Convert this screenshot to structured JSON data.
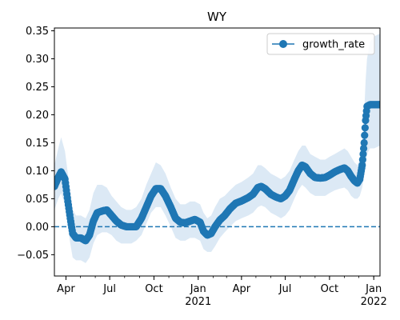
{
  "chart_data": {
    "type": "line",
    "title": "WY",
    "xlabel": "",
    "ylabel": "",
    "x_range": [
      "2020-03-08",
      "2022-01-14"
    ],
    "ylim": [
      -0.088,
      0.355
    ],
    "y_ticks": [
      -0.05,
      0.0,
      0.05,
      0.1,
      0.15,
      0.2,
      0.25,
      0.3,
      0.35
    ],
    "y_tick_labels": [
      "−0.05",
      "0.00",
      "0.05",
      "0.10",
      "0.15",
      "0.20",
      "0.25",
      "0.30",
      "0.35"
    ],
    "x_ticks": [
      {
        "date": "2020-04-01",
        "label": "Apr",
        "sublabel": ""
      },
      {
        "date": "2020-07-01",
        "label": "Jul",
        "sublabel": ""
      },
      {
        "date": "2020-10-01",
        "label": "Oct",
        "sublabel": ""
      },
      {
        "date": "2021-01-01",
        "label": "Jan",
        "sublabel": "2021"
      },
      {
        "date": "2021-04-01",
        "label": "Apr",
        "sublabel": ""
      },
      {
        "date": "2021-07-01",
        "label": "Jul",
        "sublabel": ""
      },
      {
        "date": "2021-10-01",
        "label": "Oct",
        "sublabel": ""
      },
      {
        "date": "2022-01-01",
        "label": "Jan",
        "sublabel": "2022"
      }
    ],
    "reference_line": {
      "y": 0.0,
      "style": "dashed"
    },
    "legend": {
      "position": "upper right",
      "entries": [
        "growth_rate"
      ]
    },
    "grid": false,
    "series": [
      {
        "name": "growth_rate",
        "color": "#1f77b4",
        "band_color": "#dce9f5",
        "points": [
          {
            "x": "2020-03-08",
            "y": 0.072,
            "lo": 0.03,
            "hi": 0.11
          },
          {
            "x": "2020-03-16",
            "y": 0.088,
            "lo": 0.05,
            "hi": 0.14
          },
          {
            "x": "2020-03-22",
            "y": 0.098,
            "lo": 0.06,
            "hi": 0.16
          },
          {
            "x": "2020-03-30",
            "y": 0.085,
            "lo": 0.04,
            "hi": 0.135
          },
          {
            "x": "2020-04-05",
            "y": 0.045,
            "lo": 0.0,
            "hi": 0.095
          },
          {
            "x": "2020-04-10",
            "y": 0.015,
            "lo": -0.03,
            "hi": 0.06
          },
          {
            "x": "2020-04-15",
            "y": -0.012,
            "lo": -0.055,
            "hi": 0.03
          },
          {
            "x": "2020-04-22",
            "y": -0.02,
            "lo": -0.06,
            "hi": 0.02
          },
          {
            "x": "2020-05-02",
            "y": -0.02,
            "lo": -0.06,
            "hi": 0.02
          },
          {
            "x": "2020-05-12",
            "y": -0.025,
            "lo": -0.065,
            "hi": 0.015
          },
          {
            "x": "2020-05-20",
            "y": -0.015,
            "lo": -0.055,
            "hi": 0.03
          },
          {
            "x": "2020-05-28",
            "y": 0.01,
            "lo": -0.03,
            "hi": 0.06
          },
          {
            "x": "2020-06-05",
            "y": 0.025,
            "lo": -0.015,
            "hi": 0.075
          },
          {
            "x": "2020-06-15",
            "y": 0.028,
            "lo": -0.01,
            "hi": 0.075
          },
          {
            "x": "2020-06-25",
            "y": 0.03,
            "lo": -0.01,
            "hi": 0.07
          },
          {
            "x": "2020-07-05",
            "y": 0.02,
            "lo": -0.015,
            "hi": 0.055
          },
          {
            "x": "2020-07-15",
            "y": 0.01,
            "lo": -0.025,
            "hi": 0.045
          },
          {
            "x": "2020-07-25",
            "y": 0.003,
            "lo": -0.03,
            "hi": 0.035
          },
          {
            "x": "2020-08-05",
            "y": 0.0,
            "lo": -0.03,
            "hi": 0.03
          },
          {
            "x": "2020-08-15",
            "y": 0.0,
            "lo": -0.03,
            "hi": 0.03
          },
          {
            "x": "2020-08-25",
            "y": 0.0,
            "lo": -0.025,
            "hi": 0.035
          },
          {
            "x": "2020-09-05",
            "y": 0.015,
            "lo": -0.015,
            "hi": 0.05
          },
          {
            "x": "2020-09-15",
            "y": 0.035,
            "lo": 0.005,
            "hi": 0.075
          },
          {
            "x": "2020-09-25",
            "y": 0.055,
            "lo": 0.025,
            "hi": 0.095
          },
          {
            "x": "2020-10-05",
            "y": 0.068,
            "lo": 0.035,
            "hi": 0.115
          },
          {
            "x": "2020-10-15",
            "y": 0.068,
            "lo": 0.035,
            "hi": 0.11
          },
          {
            "x": "2020-10-25",
            "y": 0.055,
            "lo": 0.02,
            "hi": 0.095
          },
          {
            "x": "2020-11-05",
            "y": 0.035,
            "lo": 0.0,
            "hi": 0.07
          },
          {
            "x": "2020-11-15",
            "y": 0.015,
            "lo": -0.02,
            "hi": 0.05
          },
          {
            "x": "2020-11-25",
            "y": 0.008,
            "lo": -0.025,
            "hi": 0.04
          },
          {
            "x": "2020-12-05",
            "y": 0.007,
            "lo": -0.025,
            "hi": 0.04
          },
          {
            "x": "2020-12-15",
            "y": 0.01,
            "lo": -0.02,
            "hi": 0.045
          },
          {
            "x": "2020-12-25",
            "y": 0.013,
            "lo": -0.02,
            "hi": 0.045
          },
          {
            "x": "2021-01-05",
            "y": 0.008,
            "lo": -0.025,
            "hi": 0.04
          },
          {
            "x": "2021-01-12",
            "y": -0.008,
            "lo": -0.04,
            "hi": 0.025
          },
          {
            "x": "2021-01-20",
            "y": -0.015,
            "lo": -0.045,
            "hi": 0.015
          },
          {
            "x": "2021-01-28",
            "y": -0.012,
            "lo": -0.045,
            "hi": 0.02
          },
          {
            "x": "2021-02-05",
            "y": 0.0,
            "lo": -0.035,
            "hi": 0.035
          },
          {
            "x": "2021-02-15",
            "y": 0.012,
            "lo": -0.02,
            "hi": 0.05
          },
          {
            "x": "2021-02-25",
            "y": 0.02,
            "lo": -0.01,
            "hi": 0.055
          },
          {
            "x": "2021-03-08",
            "y": 0.032,
            "lo": 0.0,
            "hi": 0.065
          },
          {
            "x": "2021-03-20",
            "y": 0.042,
            "lo": 0.01,
            "hi": 0.075
          },
          {
            "x": "2021-04-01",
            "y": 0.046,
            "lo": 0.015,
            "hi": 0.08
          },
          {
            "x": "2021-04-15",
            "y": 0.052,
            "lo": 0.02,
            "hi": 0.088
          },
          {
            "x": "2021-04-25",
            "y": 0.058,
            "lo": 0.025,
            "hi": 0.095
          },
          {
            "x": "2021-05-05",
            "y": 0.07,
            "lo": 0.035,
            "hi": 0.11
          },
          {
            "x": "2021-05-12",
            "y": 0.072,
            "lo": 0.038,
            "hi": 0.11
          },
          {
            "x": "2021-05-20",
            "y": 0.068,
            "lo": 0.035,
            "hi": 0.105
          },
          {
            "x": "2021-06-01",
            "y": 0.058,
            "lo": 0.025,
            "hi": 0.095
          },
          {
            "x": "2021-06-12",
            "y": 0.053,
            "lo": 0.02,
            "hi": 0.09
          },
          {
            "x": "2021-06-22",
            "y": 0.05,
            "lo": 0.015,
            "hi": 0.085
          },
          {
            "x": "2021-07-01",
            "y": 0.055,
            "lo": 0.02,
            "hi": 0.09
          },
          {
            "x": "2021-07-10",
            "y": 0.065,
            "lo": 0.03,
            "hi": 0.1
          },
          {
            "x": "2021-07-20",
            "y": 0.085,
            "lo": 0.05,
            "hi": 0.12
          },
          {
            "x": "2021-07-28",
            "y": 0.1,
            "lo": 0.065,
            "hi": 0.135
          },
          {
            "x": "2021-08-05",
            "y": 0.11,
            "lo": 0.075,
            "hi": 0.145
          },
          {
            "x": "2021-08-12",
            "y": 0.107,
            "lo": 0.07,
            "hi": 0.145
          },
          {
            "x": "2021-08-22",
            "y": 0.095,
            "lo": 0.06,
            "hi": 0.13
          },
          {
            "x": "2021-09-01",
            "y": 0.088,
            "lo": 0.055,
            "hi": 0.125
          },
          {
            "x": "2021-09-12",
            "y": 0.087,
            "lo": 0.055,
            "hi": 0.12
          },
          {
            "x": "2021-09-22",
            "y": 0.088,
            "lo": 0.055,
            "hi": 0.12
          },
          {
            "x": "2021-10-01",
            "y": 0.092,
            "lo": 0.06,
            "hi": 0.125
          },
          {
            "x": "2021-10-12",
            "y": 0.098,
            "lo": 0.065,
            "hi": 0.13
          },
          {
            "x": "2021-10-22",
            "y": 0.102,
            "lo": 0.068,
            "hi": 0.135
          },
          {
            "x": "2021-11-01",
            "y": 0.105,
            "lo": 0.07,
            "hi": 0.14
          },
          {
            "x": "2021-11-08",
            "y": 0.1,
            "lo": 0.065,
            "hi": 0.135
          },
          {
            "x": "2021-11-15",
            "y": 0.09,
            "lo": 0.055,
            "hi": 0.125
          },
          {
            "x": "2021-11-22",
            "y": 0.082,
            "lo": 0.05,
            "hi": 0.115
          },
          {
            "x": "2021-11-28",
            "y": 0.078,
            "lo": 0.05,
            "hi": 0.11
          },
          {
            "x": "2021-12-03",
            "y": 0.085,
            "lo": 0.055,
            "hi": 0.12
          },
          {
            "x": "2021-12-08",
            "y": 0.11,
            "lo": 0.07,
            "hi": 0.15
          },
          {
            "x": "2021-12-12",
            "y": 0.15,
            "lo": 0.09,
            "hi": 0.2
          },
          {
            "x": "2021-12-15",
            "y": 0.19,
            "lo": 0.11,
            "hi": 0.26
          },
          {
            "x": "2021-12-18",
            "y": 0.215,
            "lo": 0.13,
            "hi": 0.3
          },
          {
            "x": "2021-12-24",
            "y": 0.218,
            "lo": 0.14,
            "hi": 0.33
          },
          {
            "x": "2022-01-02",
            "y": 0.218,
            "lo": 0.14,
            "hi": 0.34
          },
          {
            "x": "2022-01-14",
            "y": 0.218,
            "lo": 0.145,
            "hi": 0.345
          }
        ]
      }
    ]
  }
}
